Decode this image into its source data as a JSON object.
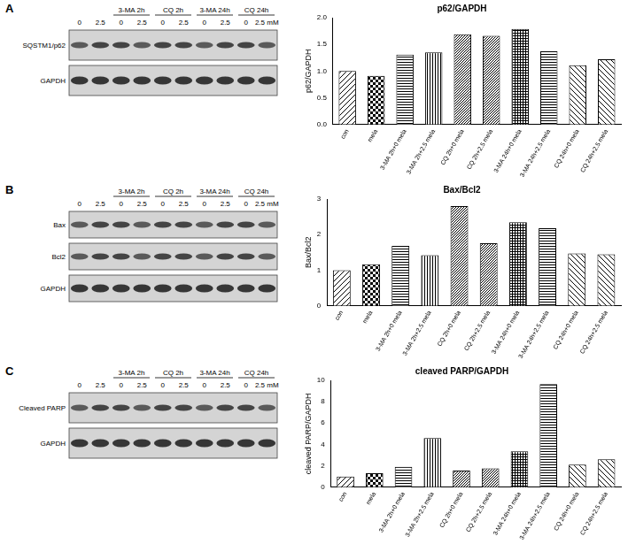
{
  "panels": [
    {
      "label": "A",
      "blot": {
        "groups": [
          {
            "group": null,
            "lanes": [
              "0",
              "2.5"
            ]
          },
          {
            "group": "3-MA 2h",
            "lanes": [
              "0",
              "2.5"
            ]
          },
          {
            "group": "CQ 2h",
            "lanes": [
              "0",
              "2.5"
            ]
          },
          {
            "group": "3-MA 24h",
            "lanes": [
              "0",
              "2.5"
            ]
          },
          {
            "group": "CQ 24h",
            "lanes": [
              "0",
              "2.5 mM"
            ]
          }
        ],
        "rows": [
          "SQSTM1/p62",
          "GAPDH"
        ]
      }
    },
    {
      "label": "B",
      "blot": {
        "groups": [
          {
            "group": null,
            "lanes": [
              "0",
              "2.5"
            ]
          },
          {
            "group": "3-MA 2h",
            "lanes": [
              "0",
              "2.5"
            ]
          },
          {
            "group": "CQ 2h",
            "lanes": [
              "0",
              "2.5"
            ]
          },
          {
            "group": "3-MA 24h",
            "lanes": [
              "0",
              "2.5"
            ]
          },
          {
            "group": "CQ 24h",
            "lanes": [
              "0",
              "2.5 mM"
            ]
          }
        ],
        "rows": [
          "Bax",
          "Bcl2",
          "GAPDH"
        ]
      }
    },
    {
      "label": "C",
      "blot": {
        "groups": [
          {
            "group": null,
            "lanes": [
              "0",
              "2.5"
            ]
          },
          {
            "group": "3-MA 2h",
            "lanes": [
              "0",
              "2.5"
            ]
          },
          {
            "group": "CQ 2h",
            "lanes": [
              "0",
              "2.5"
            ]
          },
          {
            "group": "3-MA 24h",
            "lanes": [
              "0",
              "2.5"
            ]
          },
          {
            "group": "CQ 24h",
            "lanes": [
              "0",
              "2.5 mM"
            ]
          }
        ],
        "rows": [
          "Cleaved PARP",
          "GAPDH"
        ]
      }
    }
  ],
  "chart_data": [
    {
      "type": "bar",
      "title": "p62/GAPDH",
      "y_label": "p62/GAPDH",
      "categories": [
        "con",
        "mela",
        "3-MA 2h+0 mela",
        "3-MA 2h+2.5 mela",
        "CQ 2h+0 mela",
        "CQ 2h+2.5 mela",
        "3-MA 24h+0 mela",
        "3-MA 24h+2.5 mela",
        "CQ 24h+0 mela",
        "CQ 24h+2.5 mela"
      ],
      "values": [
        1.0,
        0.91,
        1.31,
        1.35,
        1.69,
        1.66,
        1.79,
        1.37,
        1.11,
        1.22
      ],
      "color": "#000000",
      "ylim": [
        0,
        2
      ],
      "yticks": [
        {
          "value": 0,
          "label": "0.0"
        },
        {
          "value": 0.5,
          "label": "0.5"
        },
        {
          "value": 1,
          "label": "1.0"
        },
        {
          "value": 1.5,
          "label": "1.5"
        },
        {
          "value": 2,
          "label": "2.0"
        }
      ],
      "grid": false
    },
    {
      "type": "bar",
      "title": "Bax/Bcl2",
      "y_label": "Bax/Bcl2",
      "categories": [
        "con",
        "mela",
        "3-MA 2h+0 mela",
        "3-MA 2h+2.5 mela",
        "CQ 2h+0 mela",
        "CQ 2h+2.5 mela",
        "3-MA 24h+0 mela",
        "3-MA 24h+2.5 mela",
        "CQ 24h+0 mela",
        "CQ 24h+2.5 mela"
      ],
      "values": [
        1.0,
        1.17,
        1.68,
        1.42,
        2.8,
        1.76,
        2.35,
        2.18,
        1.47,
        1.45
      ],
      "color": "#000000",
      "ylim": [
        0,
        3
      ],
      "yticks": [
        0,
        1,
        2,
        3
      ],
      "grid": false
    },
    {
      "type": "bar",
      "title": "cleaved PARP/GAPDH",
      "y_label": "cleaved PARP/GAPDH",
      "categories": [
        "con",
        "mela",
        "3-MA 2h+0 mela",
        "3-MA 2h+2.5 mela",
        "CQ 2h+0 mela",
        "CQ 2h+2.5 mela",
        "3-MA 24h+0 mela",
        "3-MA 24h+2.5 mela",
        "CQ 24h+0 mela",
        "CQ 24h+2.5 mela"
      ],
      "values": [
        1.0,
        1.3,
        1.9,
        4.6,
        1.55,
        1.75,
        3.35,
        9.65,
        2.1,
        2.6
      ],
      "color": "#000000",
      "ylim": [
        0,
        10
      ],
      "yticks": [
        0,
        2,
        4,
        6,
        8,
        10
      ],
      "grid": false
    }
  ]
}
